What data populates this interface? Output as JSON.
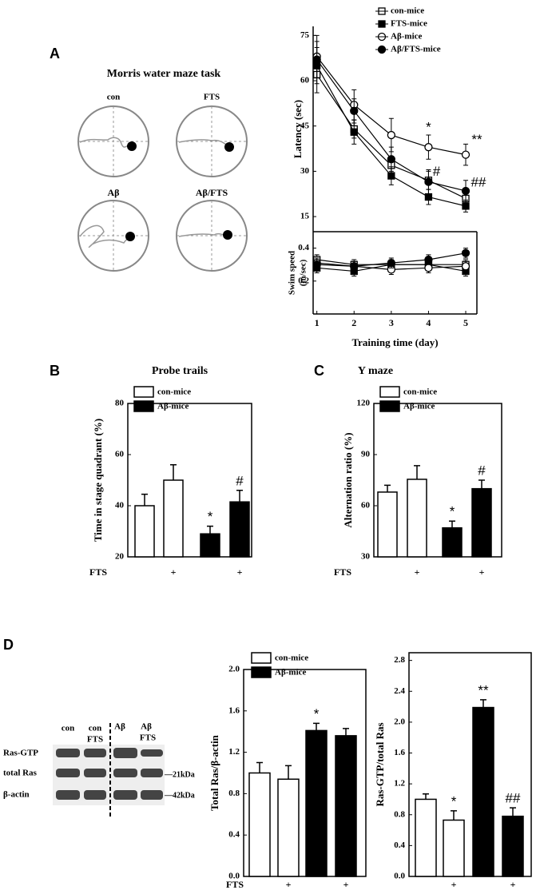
{
  "panel_labels": [
    "A",
    "B",
    "C",
    "D"
  ],
  "maze": {
    "title": "Morris water maze task",
    "labels": [
      "con",
      "FTS",
      "Aβ",
      "Aβ/FTS"
    ]
  },
  "blot": {
    "lanes": [
      [
        "con"
      ],
      [
        "con",
        "FTS"
      ],
      [
        "Aβ"
      ],
      [
        "Aβ",
        "FTS"
      ]
    ],
    "rows": [
      "Ras-GTP",
      "total Ras",
      "β-actin"
    ],
    "markers": [
      "—21kDa",
      "—42kDa"
    ]
  },
  "chart_data": [
    {
      "type": "line",
      "ylabel": "Latency (sec)",
      "x": [
        1,
        2,
        3,
        4,
        5
      ],
      "xlim": [
        0.9,
        5.3
      ],
      "ylim": [
        10,
        78
      ],
      "yticks": [
        15,
        30,
        45,
        60,
        75
      ],
      "series": [
        {
          "name": "con-mice",
          "marker": "square",
          "color": "#ffffff",
          "values": [
            62,
            44,
            32,
            27,
            21
          ],
          "errors": [
            6,
            3,
            3,
            3,
            2.5
          ]
        },
        {
          "name": "FTS-mice",
          "marker": "square",
          "color": "#000000",
          "values": [
            65,
            43,
            28.5,
            21.5,
            18.5
          ],
          "errors": [
            6,
            4,
            3,
            2.5,
            2
          ]
        },
        {
          "name": "Aβ-mice",
          "marker": "circle",
          "color": "#ffffff",
          "values": [
            68,
            52,
            42,
            38,
            35.5
          ],
          "errors": [
            7,
            5,
            5.5,
            4,
            3.5
          ]
        },
        {
          "name": "Aβ/FTS-mice",
          "marker": "circle",
          "color": "#000000",
          "values": [
            67,
            50,
            34,
            26.5,
            23.5
          ],
          "errors": [
            6,
            4,
            4,
            4,
            3.5
          ]
        }
      ],
      "annotations": [
        "*",
        "**",
        "#",
        "##"
      ]
    },
    {
      "type": "line",
      "ylabel": [
        "Swim speed",
        "(m/sec)"
      ],
      "xlabel": "Training time (day)",
      "x": [
        1,
        2,
        3,
        4,
        5
      ],
      "xlim": [
        0.9,
        5.3
      ],
      "xticks": [
        1,
        2,
        3,
        4,
        5
      ],
      "ylim": [
        0,
        0.5
      ],
      "yticks": [
        0.2,
        0.4
      ],
      "series": [
        {
          "marker": "square",
          "color": "#ffffff",
          "values": [
            0.33,
            0.3,
            0.3,
            0.3,
            0.3
          ],
          "errors": [
            0.03,
            0.03,
            0.03,
            0.03,
            0.03
          ]
        },
        {
          "marker": "square",
          "color": "#000000",
          "values": [
            0.28,
            0.26,
            0.3,
            0.3,
            0.26
          ],
          "errors": [
            0.03,
            0.03,
            0.03,
            0.03,
            0.03
          ]
        },
        {
          "marker": "circle",
          "color": "#ffffff",
          "values": [
            0.31,
            0.29,
            0.27,
            0.28,
            0.29
          ],
          "errors": [
            0.03,
            0.03,
            0.03,
            0.03,
            0.03
          ]
        },
        {
          "marker": "circle",
          "color": "#000000",
          "values": [
            0.3,
            0.29,
            0.31,
            0.33,
            0.37
          ],
          "errors": [
            0.03,
            0.03,
            0.03,
            0.03,
            0.03
          ]
        }
      ]
    },
    {
      "type": "bar",
      "title": "Probe trails",
      "ylabel": "Time in stage quadrant (%)",
      "row_label": "FTS",
      "categories": [
        null,
        "+",
        null,
        "+"
      ],
      "values": [
        40,
        50,
        29,
        41.5
      ],
      "errors": [
        4.5,
        6,
        3,
        4.5
      ],
      "colors": [
        "#ffffff",
        "#ffffff",
        "#000000",
        "#000000"
      ],
      "legend": [
        {
          "name": "con-mice",
          "color": "#ffffff"
        },
        {
          "name": "Aβ-mice",
          "color": "#000000"
        }
      ],
      "annotations": [
        null,
        null,
        "*",
        "#"
      ],
      "ylim": [
        20,
        80
      ],
      "yticks": [
        20,
        40,
        60,
        80
      ]
    },
    {
      "type": "bar",
      "title": "Y maze",
      "ylabel": "Alternation ratio (%)",
      "row_label": "FTS",
      "categories": [
        null,
        "+",
        null,
        "+"
      ],
      "values": [
        68,
        75.5,
        47,
        70
      ],
      "errors": [
        4,
        8,
        4,
        5
      ],
      "colors": [
        "#ffffff",
        "#ffffff",
        "#000000",
        "#000000"
      ],
      "legend": [
        {
          "name": "con-mice",
          "color": "#ffffff"
        },
        {
          "name": "Aβ-mice",
          "color": "#000000"
        }
      ],
      "annotations": [
        null,
        null,
        "*",
        "#"
      ],
      "ylim": [
        30,
        120
      ],
      "yticks": [
        30,
        60,
        90,
        120
      ]
    },
    {
      "type": "bar",
      "ylabel": "Total Ras/β-actin",
      "row_label": "FTS",
      "categories": [
        null,
        "+",
        null,
        "+"
      ],
      "values": [
        1.0,
        0.94,
        1.41,
        1.36
      ],
      "errors": [
        0.1,
        0.13,
        0.07,
        0.07
      ],
      "colors": [
        "#ffffff",
        "#ffffff",
        "#000000",
        "#000000"
      ],
      "legend": [
        {
          "name": "con-mice",
          "color": "#ffffff"
        },
        {
          "name": "Aβ-mice",
          "color": "#000000"
        }
      ],
      "annotations": [
        null,
        null,
        "*",
        null
      ],
      "ylim": [
        0,
        2.0
      ],
      "yticks": [
        {
          "value": 0,
          "label": "0.0"
        },
        0.4,
        0.8,
        1.2,
        1.6,
        {
          "value": 2,
          "label": "2.0"
        }
      ]
    },
    {
      "type": "bar",
      "ylabel": "Ras-GTP/total Ras",
      "categories": [
        null,
        "+",
        null,
        "+"
      ],
      "values": [
        1.0,
        0.73,
        2.19,
        0.78
      ],
      "errors": [
        0.07,
        0.12,
        0.1,
        0.11
      ],
      "colors": [
        "#ffffff",
        "#ffffff",
        "#000000",
        "#000000"
      ],
      "annotations": [
        null,
        "*",
        "**",
        "##"
      ],
      "ylim": [
        0,
        2.9
      ],
      "yticks": [
        {
          "value": 0,
          "label": "0.0"
        },
        0.4,
        0.8,
        1.2,
        1.6,
        {
          "value": 2,
          "label": "2.0"
        },
        2.4,
        2.8
      ]
    }
  ]
}
